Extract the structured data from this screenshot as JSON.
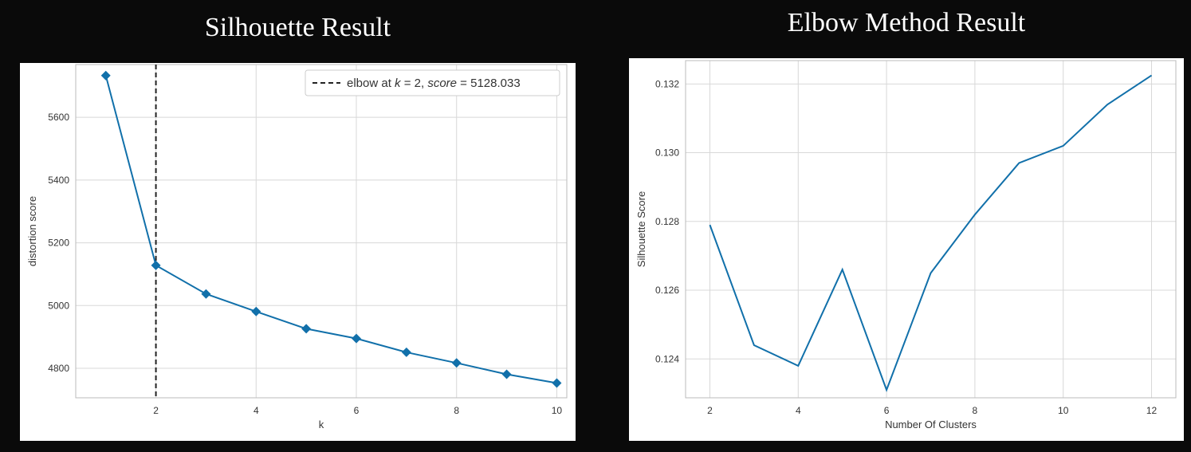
{
  "titles": {
    "left": "Silhouette Result",
    "right": "Elbow Method Result"
  },
  "colors": {
    "line": "#1170aa",
    "grid": "#d8d8d8",
    "axis": "#bbbbbb",
    "elbow": "#222222"
  },
  "chart_data": [
    {
      "type": "line",
      "xlabel": "k",
      "ylabel": "distortion score",
      "x": [
        1,
        2,
        3,
        4,
        5,
        6,
        7,
        8,
        9,
        10
      ],
      "y": [
        5733,
        5128.033,
        5037,
        4981,
        4926,
        4895,
        4851,
        4817,
        4781,
        4753
      ],
      "marker": "diamond",
      "xlim": [
        0.4,
        10.2
      ],
      "ylim": [
        4706,
        5768
      ],
      "xticks": [
        2,
        4,
        6,
        8,
        10
      ],
      "yticks": [
        4800,
        5000,
        5200,
        5400,
        5600
      ],
      "xtick_labels": [
        "2",
        "4",
        "6",
        "8",
        "10"
      ],
      "ytick_labels": [
        "4800",
        "5000",
        "5200",
        "5400",
        "5600"
      ],
      "grid": true,
      "elbow": {
        "k": 2,
        "score": 5128.033
      },
      "legend": {
        "placement": "top-right",
        "prefix": "elbow at ",
        "k_symbol": "k",
        "equals_two": " = 2, ",
        "score_symbol": "score",
        "equals_score": " = 5128.033"
      }
    },
    {
      "type": "line",
      "xlabel": "Number Of Clusters",
      "ylabel": "Silhouette Score",
      "x": [
        2,
        3,
        4,
        5,
        6,
        7,
        8,
        9,
        10,
        11,
        12
      ],
      "y": [
        0.1279,
        0.1244,
        0.1238,
        0.1266,
        0.1231,
        0.1265,
        0.1282,
        0.1297,
        0.1302,
        0.1314,
        0.13225
      ],
      "xlim": [
        1.45,
        12.55
      ],
      "ylim": [
        0.12287,
        0.13268
      ],
      "xticks": [
        2,
        4,
        6,
        8,
        10,
        12
      ],
      "yticks": [
        0.124,
        0.126,
        0.128,
        0.13,
        0.132
      ],
      "xtick_labels": [
        "2",
        "4",
        "6",
        "8",
        "10",
        "12"
      ],
      "ytick_labels": [
        "0.124",
        "0.126",
        "0.128",
        "0.130",
        "0.132"
      ],
      "grid": true
    }
  ]
}
